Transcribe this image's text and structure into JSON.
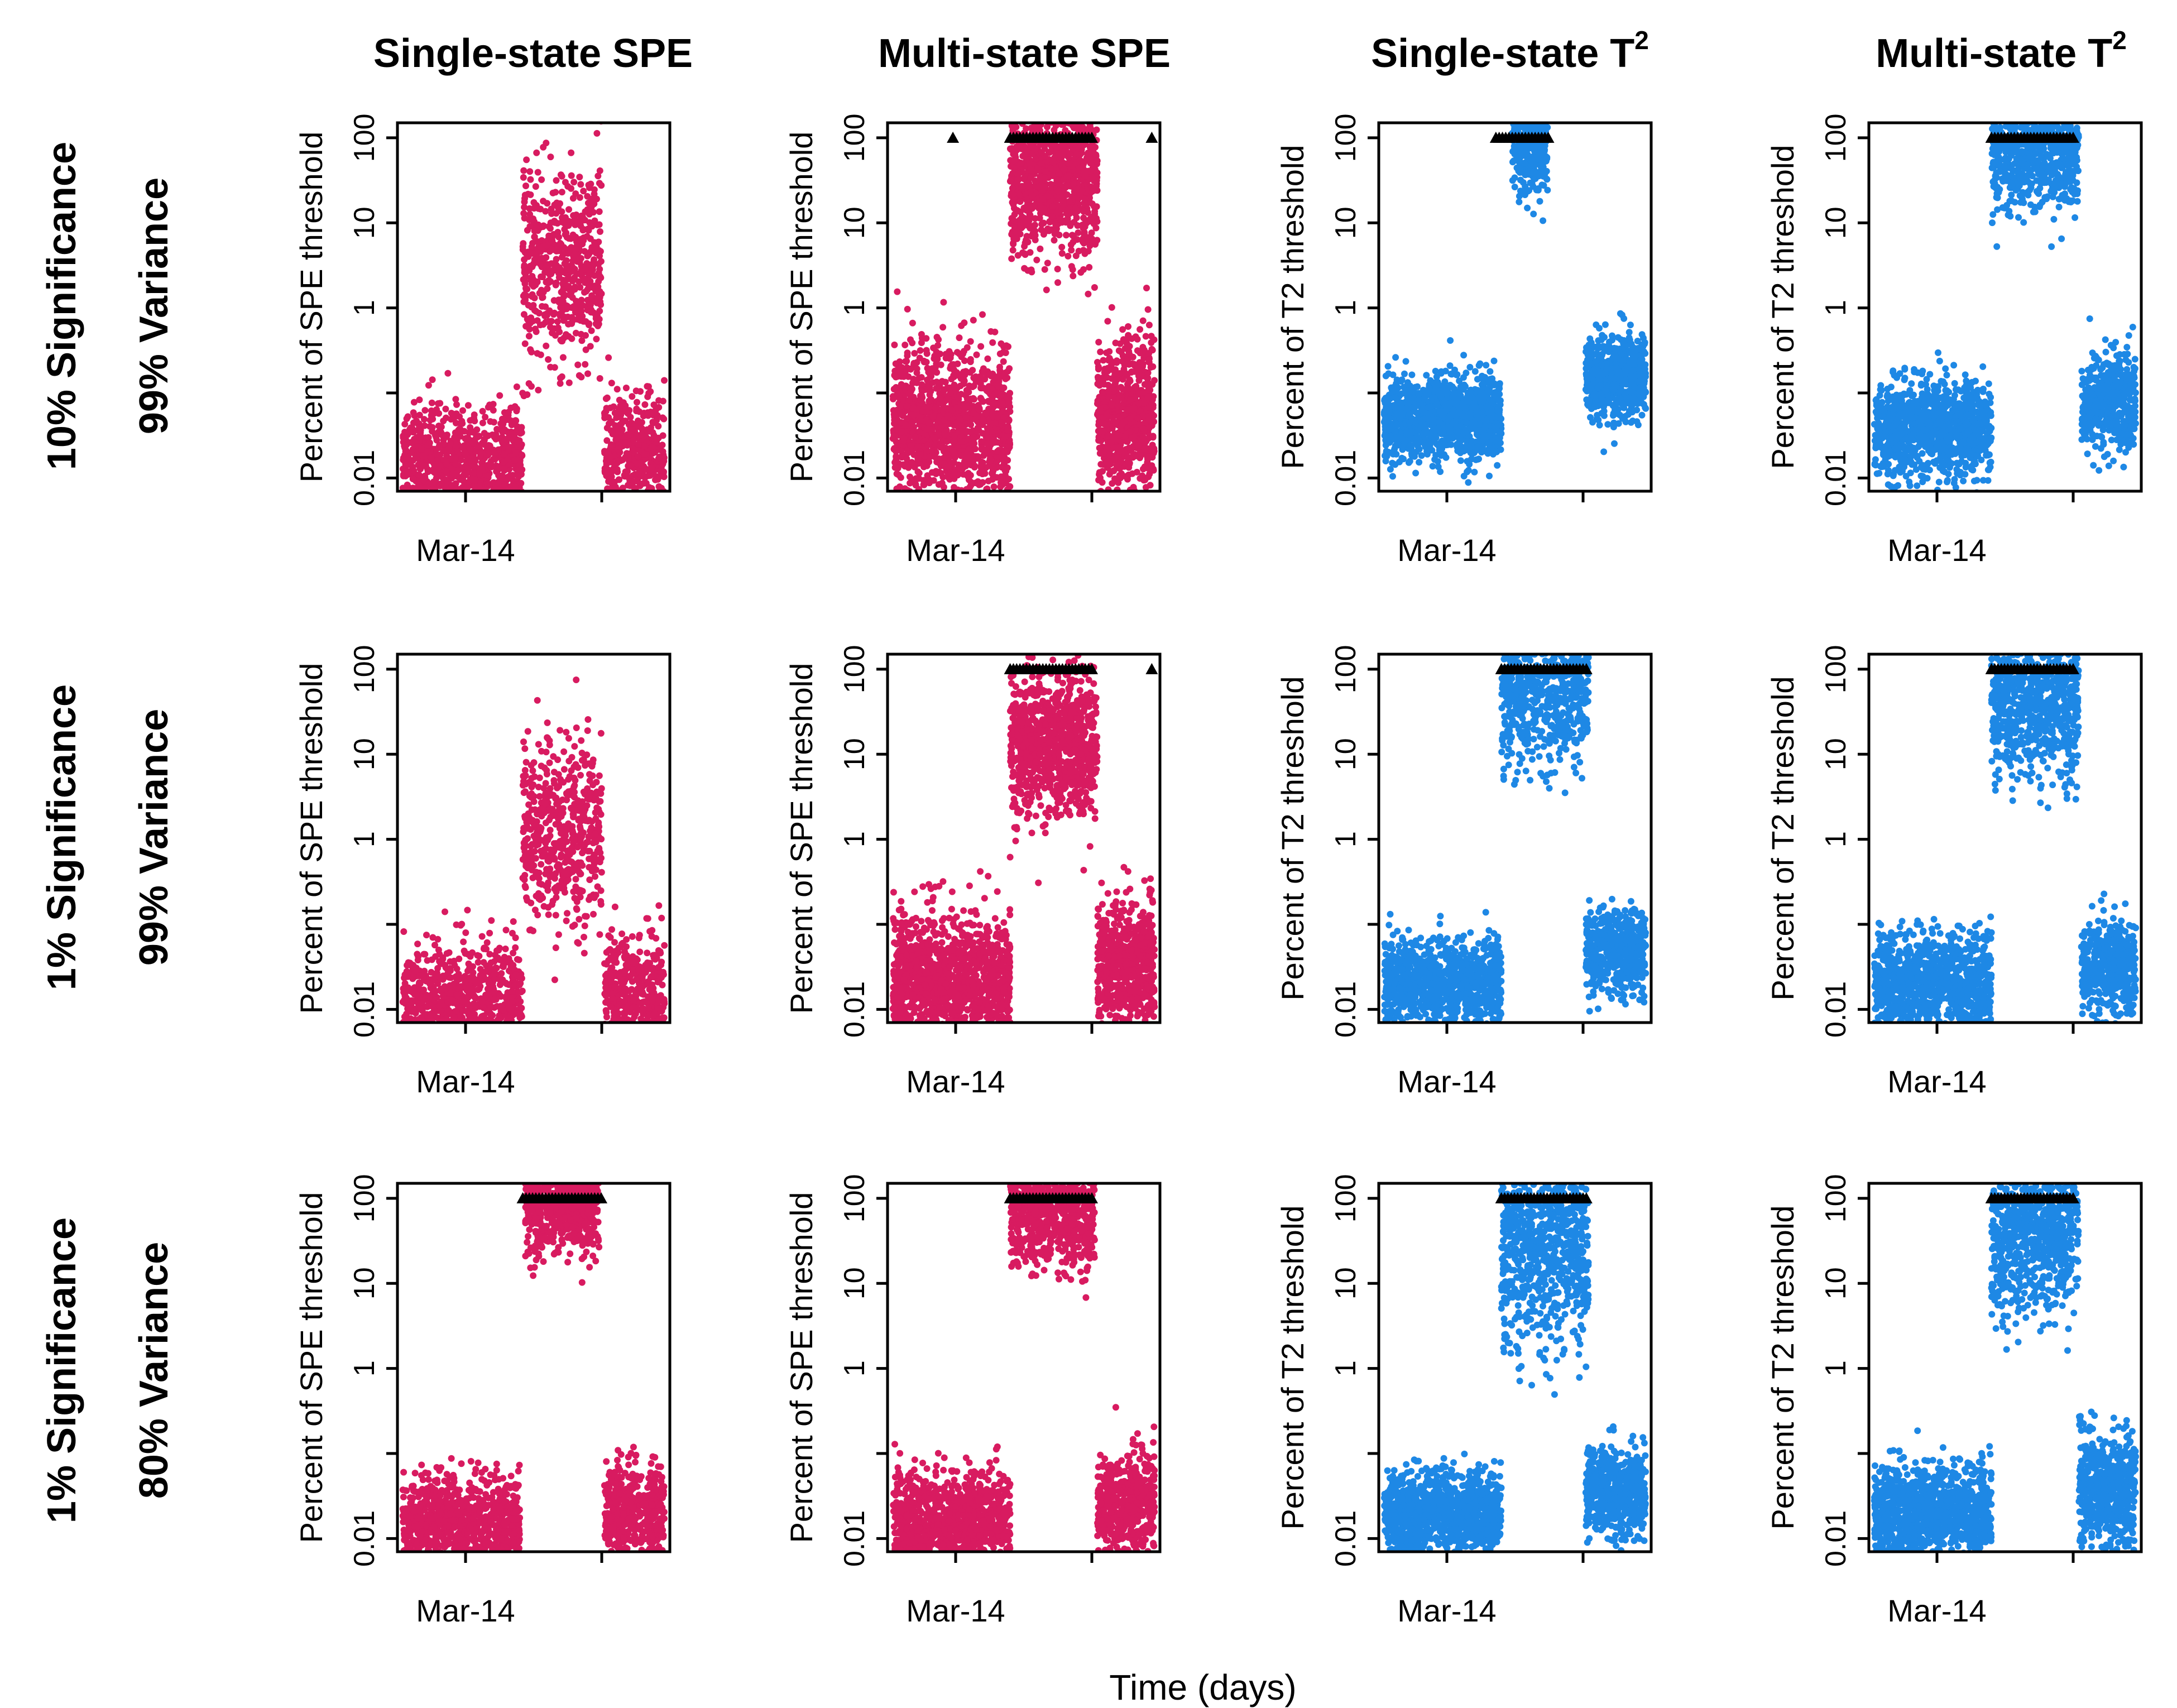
{
  "figure": {
    "x_axis_label": "Time (days)",
    "columns": [
      {
        "title": "Single-state SPE",
        "sup": ""
      },
      {
        "title": "Multi-state SPE",
        "sup": ""
      },
      {
        "title": "Single-state T",
        "sup": "2"
      },
      {
        "title": "Multi-state T",
        "sup": "2"
      }
    ],
    "rows": [
      {
        "significance": "10% Significance",
        "variance": "99% Variance"
      },
      {
        "significance": "1% Significance",
        "variance": "99% Variance"
      },
      {
        "significance": "1% Significance",
        "variance": "80% Variance"
      }
    ]
  },
  "colors": {
    "spe": "#D81B60",
    "t2": "#1E88E5",
    "axis": "#000000"
  },
  "chart_data": {
    "type": "scatter",
    "layout": "3x4 grid of small multiples (rows = significance/variance, columns = statistic)",
    "x_tick_labels": [
      "Mar-14"
    ],
    "xlabel": "Time (days)",
    "y_scale": "log10",
    "ylim": [
      0.007,
      150
    ],
    "y_ticks": [
      0.01,
      1,
      10,
      100
    ],
    "y_tick_labels": [
      "0.01",
      "1",
      "10",
      "100"
    ],
    "overflow_marker": "black triangles at y = 100 mark values above the plotted range",
    "x_domain": [
      0,
      1
    ],
    "x_tick_positions": [
      0.25,
      0.75
    ],
    "ylabels": {
      "spe": "Percent of SPE threshold",
      "t2": "Percent of T2 threshold"
    },
    "panels": [
      {
        "row": 0,
        "col": 0,
        "metric": "spe",
        "ylabel": "Percent of SPE threshold",
        "n_points_est": 1900,
        "segments": [
          {
            "x_range": [
              0.02,
              0.46
            ],
            "y_center": 0.015,
            "spread": 0.35
          },
          {
            "x_range": [
              0.46,
              0.75
            ],
            "y_center": 3.0,
            "spread": 0.55
          },
          {
            "x_range": [
              0.76,
              0.98
            ],
            "y_center": 0.02,
            "spread": 0.35
          }
        ],
        "overflow_x_ranges": []
      },
      {
        "row": 0,
        "col": 1,
        "metric": "spe",
        "ylabel": "Percent of SPE threshold",
        "n_points_est": 3000,
        "segments": [
          {
            "x_range": [
              0.02,
              0.45
            ],
            "y_center": 0.04,
            "spread": 0.45
          },
          {
            "x_range": [
              0.45,
              0.77
            ],
            "y_center": 35,
            "spread": 0.45
          },
          {
            "x_range": [
              0.77,
              0.98
            ],
            "y_center": 0.05,
            "spread": 0.45
          }
        ],
        "overflow_x_ranges": [
          [
            0.45,
            0.76
          ]
        ],
        "overflow_points_x": [
          0.24,
          0.97
        ]
      },
      {
        "row": 0,
        "col": 2,
        "metric": "t2",
        "ylabel": "Percent of T2 threshold",
        "n_points_est": 2200,
        "segments": [
          {
            "x_range": [
              0.02,
              0.45
            ],
            "y_center": 0.05,
            "spread": 0.25
          },
          {
            "x_range": [
              0.49,
              0.62
            ],
            "y_center": 90,
            "spread": 0.3
          },
          {
            "x_range": [
              0.76,
              0.98
            ],
            "y_center": 0.15,
            "spread": 0.25
          }
        ],
        "overflow_x_ranges": [
          [
            0.43,
            0.63
          ]
        ]
      },
      {
        "row": 0,
        "col": 3,
        "metric": "t2",
        "ylabel": "Percent of T2 threshold",
        "n_points_est": 2200,
        "segments": [
          {
            "x_range": [
              0.02,
              0.45
            ],
            "y_center": 0.04,
            "spread": 0.3
          },
          {
            "x_range": [
              0.45,
              0.77
            ],
            "y_center": 70,
            "spread": 0.35
          },
          {
            "x_range": [
              0.78,
              0.98
            ],
            "y_center": 0.08,
            "spread": 0.3
          }
        ],
        "overflow_x_ranges": [
          [
            0.45,
            0.76
          ]
        ]
      },
      {
        "row": 1,
        "col": 0,
        "metric": "spe",
        "ylabel": "Percent of SPE threshold",
        "n_points_est": 1800,
        "segments": [
          {
            "x_range": [
              0.02,
              0.46
            ],
            "y_center": 0.012,
            "spread": 0.35
          },
          {
            "x_range": [
              0.46,
              0.75
            ],
            "y_center": 1.2,
            "spread": 0.55
          },
          {
            "x_range": [
              0.76,
              0.98
            ],
            "y_center": 0.015,
            "spread": 0.35
          }
        ],
        "overflow_x_ranges": []
      },
      {
        "row": 1,
        "col": 1,
        "metric": "spe",
        "ylabel": "Percent of SPE threshold",
        "n_points_est": 2800,
        "segments": [
          {
            "x_range": [
              0.02,
              0.45
            ],
            "y_center": 0.02,
            "spread": 0.4
          },
          {
            "x_range": [
              0.45,
              0.77
            ],
            "y_center": 12,
            "spread": 0.45
          },
          {
            "x_range": [
              0.77,
              0.98
            ],
            "y_center": 0.03,
            "spread": 0.4
          }
        ],
        "overflow_x_ranges": [
          [
            0.45,
            0.76
          ]
        ],
        "overflow_points_x": [
          0.97
        ]
      },
      {
        "row": 1,
        "col": 2,
        "metric": "t2",
        "ylabel": "Percent of T2 threshold",
        "n_points_est": 2200,
        "segments": [
          {
            "x_range": [
              0.02,
              0.45
            ],
            "y_center": 0.02,
            "spread": 0.25
          },
          {
            "x_range": [
              0.45,
              0.77
            ],
            "y_center": 60,
            "spread": 0.45
          },
          {
            "x_range": [
              0.76,
              0.98
            ],
            "y_center": 0.05,
            "spread": 0.25
          }
        ],
        "overflow_x_ranges": [
          [
            0.45,
            0.77
          ]
        ]
      },
      {
        "row": 1,
        "col": 3,
        "metric": "t2",
        "ylabel": "Percent of T2 threshold",
        "n_points_est": 2200,
        "segments": [
          {
            "x_range": [
              0.02,
              0.45
            ],
            "y_center": 0.02,
            "spread": 0.3
          },
          {
            "x_range": [
              0.45,
              0.77
            ],
            "y_center": 40,
            "spread": 0.45
          },
          {
            "x_range": [
              0.78,
              0.98
            ],
            "y_center": 0.03,
            "spread": 0.3
          }
        ],
        "overflow_x_ranges": [
          [
            0.45,
            0.76
          ]
        ]
      },
      {
        "row": 2,
        "col": 0,
        "metric": "spe",
        "ylabel": "Percent of SPE threshold",
        "n_points_est": 2000,
        "segments": [
          {
            "x_range": [
              0.02,
              0.45
            ],
            "y_center": 0.015,
            "spread": 0.3
          },
          {
            "x_range": [
              0.47,
              0.74
            ],
            "y_center": 80,
            "spread": 0.3
          },
          {
            "x_range": [
              0.76,
              0.98
            ],
            "y_center": 0.02,
            "spread": 0.3
          }
        ],
        "overflow_x_ranges": [
          [
            0.46,
            0.75
          ]
        ]
      },
      {
        "row": 2,
        "col": 1,
        "metric": "spe",
        "ylabel": "Percent of SPE threshold",
        "n_points_est": 2300,
        "segments": [
          {
            "x_range": [
              0.02,
              0.45
            ],
            "y_center": 0.015,
            "spread": 0.3
          },
          {
            "x_range": [
              0.45,
              0.76
            ],
            "y_center": 70,
            "spread": 0.35
          },
          {
            "x_range": [
              0.77,
              0.98
            ],
            "y_center": 0.025,
            "spread": 0.3
          }
        ],
        "overflow_x_ranges": [
          [
            0.45,
            0.76
          ]
        ]
      },
      {
        "row": 2,
        "col": 2,
        "metric": "t2",
        "ylabel": "Percent of T2 threshold",
        "n_points_est": 2400,
        "segments": [
          {
            "x_range": [
              0.02,
              0.45
            ],
            "y_center": 0.02,
            "spread": 0.25
          },
          {
            "x_range": [
              0.45,
              0.77
            ],
            "y_center": 30,
            "spread": 0.6
          },
          {
            "x_range": [
              0.76,
              0.98
            ],
            "y_center": 0.035,
            "spread": 0.25
          }
        ],
        "overflow_x_ranges": [
          [
            0.45,
            0.77
          ]
        ]
      },
      {
        "row": 2,
        "col": 3,
        "metric": "t2",
        "ylabel": "Percent of T2 threshold",
        "n_points_est": 2400,
        "segments": [
          {
            "x_range": [
              0.02,
              0.45
            ],
            "y_center": 0.02,
            "spread": 0.3
          },
          {
            "x_range": [
              0.45,
              0.77
            ],
            "y_center": 40,
            "spread": 0.5
          },
          {
            "x_range": [
              0.77,
              0.98
            ],
            "y_center": 0.04,
            "spread": 0.35
          }
        ],
        "overflow_x_ranges": [
          [
            0.45,
            0.76
          ]
        ]
      }
    ]
  }
}
